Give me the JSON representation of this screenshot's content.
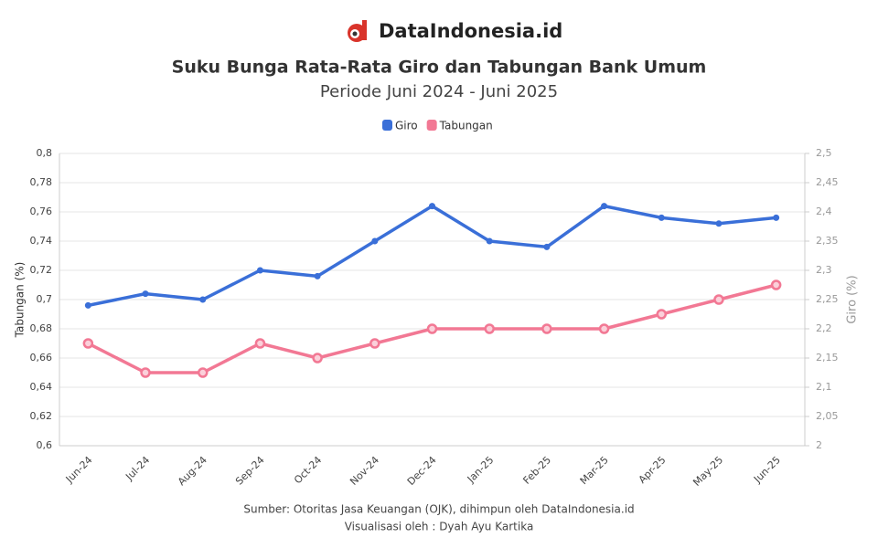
{
  "brand": "DataIndonesia.id",
  "chart_data": {
    "type": "line",
    "title": "Suku Bunga Rata-Rata Giro dan Tabungan Bank Umum",
    "subtitle": "Periode Juni 2024 - Juni 2025",
    "categories": [
      "Jun-24",
      "Jul-24",
      "Aug-24",
      "Sep-24",
      "Oct-24",
      "Nov-24",
      "Dec-24",
      "Jan-25",
      "Feb-25",
      "Mar-25",
      "Apr-25",
      "May-25",
      "Jun-25"
    ],
    "series": [
      {
        "name": "Giro",
        "color": "#3a6fd8",
        "axis": "y2",
        "values": [
          2.24,
          2.26,
          2.25,
          2.3,
          2.29,
          2.35,
          2.41,
          2.35,
          2.34,
          2.41,
          2.39,
          2.38,
          2.39
        ]
      },
      {
        "name": "Tabungan",
        "color": "#f27894",
        "values": [
          0.67,
          0.65,
          0.65,
          0.67,
          0.66,
          0.67,
          0.68,
          0.68,
          0.68,
          0.68,
          0.69,
          0.7,
          0.71
        ]
      }
    ],
    "ylabel": "Tabungan (%)",
    "y2label": "Giro (%)",
    "ylim": [
      0.6,
      0.8
    ],
    "yticks": [
      {
        "value": 0.6,
        "label": "0,6"
      },
      {
        "value": 0.62,
        "label": "0,62"
      },
      {
        "value": 0.64,
        "label": "0,64"
      },
      {
        "value": 0.66,
        "label": "0,66"
      },
      {
        "value": 0.68,
        "label": "0,68"
      },
      {
        "value": 0.7,
        "label": "0,7"
      },
      {
        "value": 0.72,
        "label": "0,72"
      },
      {
        "value": 0.74,
        "label": "0,74"
      },
      {
        "value": 0.76,
        "label": "0,76"
      },
      {
        "value": 0.78,
        "label": "0,78"
      },
      {
        "value": 0.8,
        "label": "0,8"
      }
    ],
    "y2lim": [
      2,
      2.5
    ],
    "y2ticks": [
      2,
      {
        "value": 2.05,
        "label": "2,05"
      },
      {
        "value": 2.1,
        "label": "2,1"
      },
      {
        "value": 2.15,
        "label": "2,15"
      },
      {
        "value": 2.2,
        "label": "2,2"
      },
      {
        "value": 2.25,
        "label": "2,25"
      },
      {
        "value": 2.3,
        "label": "2,3"
      },
      {
        "value": 2.35,
        "label": "2,35"
      },
      {
        "value": 2.4,
        "label": "2,4"
      },
      {
        "value": 2.45,
        "label": "2,45"
      },
      {
        "value": 2.5,
        "label": "2,5"
      }
    ],
    "grid": true,
    "legend": "top",
    "source": "Sumber: Otoritas Jasa Keuangan (OJK), dihimpun oleh DataIndonesia.id",
    "credit": "Visualisasi oleh : Dyah Ayu Kartika"
  }
}
